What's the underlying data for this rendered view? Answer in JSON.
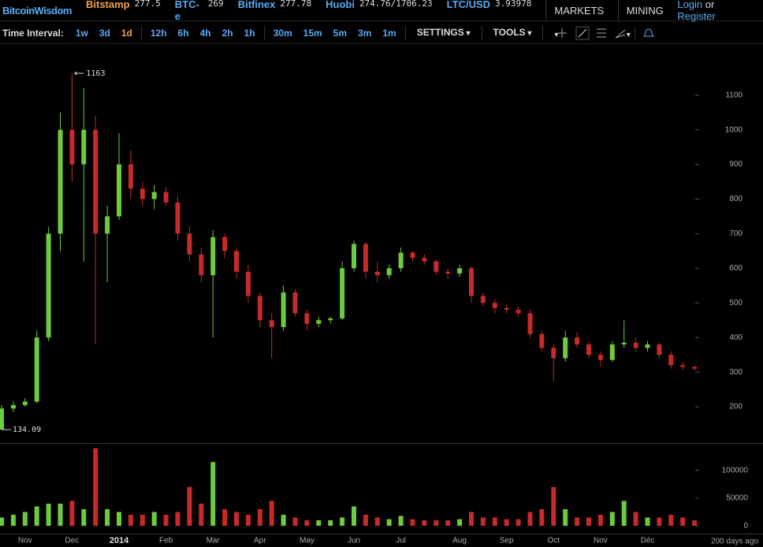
{
  "header": {
    "brand": "BitcoinWisdom",
    "tickers": [
      {
        "name": "Bitstamp",
        "price": "277.5"
      },
      {
        "name": "BTC-e",
        "price": "269"
      },
      {
        "name": "Bitfinex",
        "price": "277.78"
      },
      {
        "name": "Huobi",
        "price": "274.76/1706.23"
      },
      {
        "name": "LTC/USD",
        "price": "3.93978"
      }
    ],
    "menus": [
      "MARKETS",
      "MINING"
    ],
    "login": "Login",
    "or": "or",
    "register": "Register"
  },
  "toolbar": {
    "label": "Time Interval:",
    "intervals": [
      "1w",
      "3d",
      "1d",
      "12h",
      "6h",
      "4h",
      "2h",
      "1h",
      "30m",
      "15m",
      "5m",
      "3m",
      "1m"
    ],
    "active": "1d",
    "menus": [
      "SETTINGS",
      "TOOLS"
    ]
  },
  "chart_data": {
    "type": "candlestick",
    "categories": [
      null,
      null,
      "Nov",
      null,
      null,
      null,
      "Dec",
      null,
      null,
      null,
      "2014",
      null,
      null,
      null,
      "Feb",
      null,
      null,
      null,
      "Mar",
      null,
      null,
      null,
      "Apr",
      null,
      null,
      null,
      "May",
      null,
      null,
      null,
      "Jun",
      null,
      null,
      null,
      "Jul",
      null,
      null,
      null,
      null,
      "Aug",
      null,
      null,
      null,
      "Sep",
      null,
      null,
      null,
      "Oct",
      null,
      null,
      null,
      "Nov",
      null,
      null,
      null,
      "Déc",
      null,
      null,
      null,
      null
    ],
    "open": [
      134,
      195,
      205,
      215,
      400,
      700,
      1000,
      900,
      1000,
      700,
      750,
      900,
      830,
      800,
      820,
      790,
      700,
      640,
      580,
      690,
      650,
      590,
      520,
      450,
      430,
      530,
      470,
      440,
      450,
      455,
      600,
      670,
      590,
      580,
      600,
      645,
      630,
      620,
      590,
      585,
      600,
      520,
      500,
      485,
      480,
      470,
      410,
      370,
      340,
      400,
      380,
      350,
      335,
      380,
      385,
      370,
      380,
      350,
      320,
      315
    ],
    "high": [
      205,
      215,
      225,
      420,
      720,
      1050,
      1163,
      1120,
      1040,
      780,
      990,
      940,
      850,
      840,
      835,
      810,
      720,
      660,
      710,
      700,
      660,
      610,
      530,
      470,
      550,
      540,
      480,
      460,
      460,
      620,
      680,
      675,
      620,
      610,
      660,
      650,
      640,
      625,
      600,
      610,
      605,
      530,
      510,
      495,
      490,
      480,
      420,
      380,
      420,
      415,
      390,
      360,
      390,
      450,
      400,
      390,
      385,
      360,
      330,
      320
    ],
    "low": [
      134.09,
      185,
      200,
      210,
      390,
      650,
      850,
      620,
      380,
      560,
      740,
      800,
      780,
      770,
      780,
      680,
      620,
      560,
      400,
      630,
      570,
      500,
      430,
      340,
      420,
      460,
      420,
      430,
      440,
      450,
      590,
      570,
      560,
      570,
      590,
      620,
      610,
      580,
      570,
      575,
      500,
      490,
      470,
      470,
      460,
      400,
      360,
      275,
      330,
      370,
      340,
      315,
      330,
      370,
      360,
      360,
      340,
      310,
      305,
      305
    ],
    "close": [
      195,
      205,
      215,
      400,
      700,
      1000,
      900,
      1000,
      700,
      750,
      900,
      830,
      800,
      820,
      790,
      700,
      640,
      580,
      690,
      650,
      590,
      520,
      450,
      430,
      530,
      470,
      440,
      450,
      455,
      600,
      670,
      590,
      580,
      600,
      645,
      630,
      620,
      590,
      585,
      600,
      520,
      500,
      485,
      480,
      470,
      410,
      370,
      340,
      400,
      380,
      350,
      335,
      380,
      385,
      370,
      380,
      350,
      320,
      315,
      310
    ],
    "volume": [
      15000,
      20000,
      25000,
      35000,
      40000,
      40000,
      45000,
      30000,
      140000,
      30000,
      25000,
      20000,
      20000,
      25000,
      20000,
      25000,
      70000,
      40000,
      115000,
      30000,
      25000,
      20000,
      30000,
      45000,
      20000,
      15000,
      10000,
      10000,
      10000,
      15000,
      35000,
      20000,
      15000,
      12000,
      18000,
      12000,
      10000,
      10000,
      10000,
      12000,
      25000,
      15000,
      15000,
      12000,
      12000,
      25000,
      30000,
      70000,
      30000,
      15000,
      15000,
      20000,
      25000,
      45000,
      25000,
      15000,
      15000,
      20000,
      15000,
      10000
    ],
    "up_color": "#6ccb3e",
    "down_color": "#c62a2a",
    "ylim": [
      100,
      1245
    ],
    "yticks": [
      200,
      300,
      400,
      500,
      600,
      700,
      800,
      900,
      1000,
      1100
    ],
    "y2lim": [
      -14000,
      148000
    ],
    "y2ticks": [
      0,
      50000,
      100000
    ],
    "high_index": 6,
    "low_index": 0,
    "range_note": "200 days ago"
  }
}
